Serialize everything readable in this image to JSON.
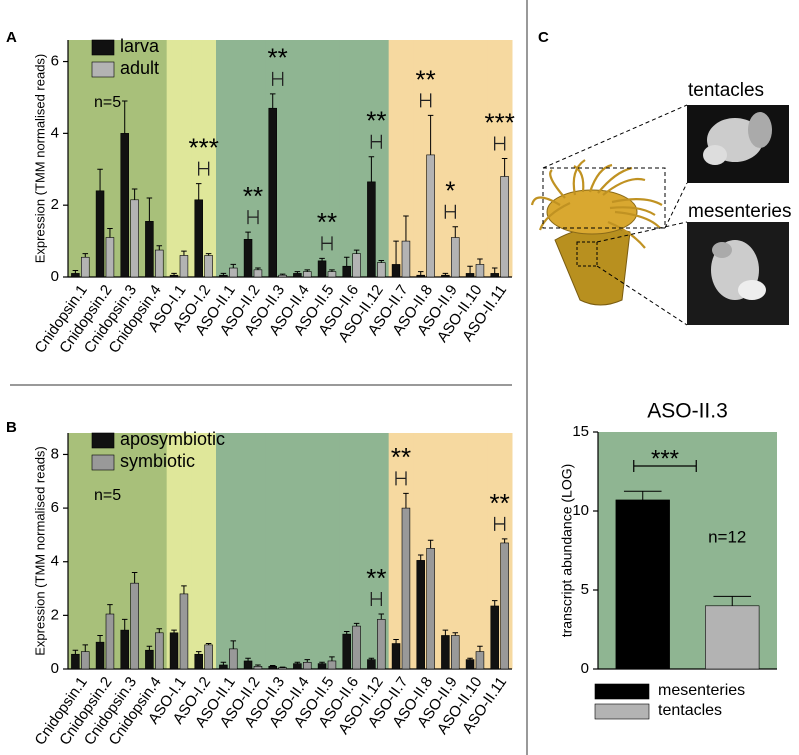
{
  "chart_data": [
    {
      "type": "bar",
      "panel_label": "A",
      "ylabel": "Expression (TMM normalised reads)",
      "categories": [
        "Cnidopsin.1",
        "Cnidopsin.2",
        "Cnidopsin.3",
        "Cnidopsin.4",
        "ASO-I.1",
        "ASO-I.2",
        "ASO-II.1",
        "ASO-II.2",
        "ASO-II.3",
        "ASO-II.4",
        "ASO-II.5",
        "ASO-II.6",
        "ASO-II.12",
        "ASO-II.7",
        "ASO-II.8",
        "ASO-II.9",
        "ASO-II.10",
        "ASO-II.11"
      ],
      "series": [
        {
          "name": "larva",
          "color": "#111111",
          "values": [
            0.1,
            2.4,
            4.0,
            1.55,
            0.05,
            2.15,
            0.05,
            1.05,
            4.7,
            0.1,
            0.45,
            0.3,
            2.65,
            0.35,
            0.05,
            0.05,
            0.1,
            0.1
          ],
          "errors": [
            0.08,
            0.6,
            0.9,
            0.65,
            0.05,
            0.45,
            0.05,
            0.2,
            0.4,
            0.05,
            0.07,
            0.25,
            0.7,
            0.65,
            0.1,
            0.05,
            0.2,
            0.15
          ]
        },
        {
          "name": "adult",
          "color": "#b3b3b3",
          "values": [
            0.55,
            1.1,
            2.15,
            0.75,
            0.6,
            0.6,
            0.25,
            0.2,
            0.05,
            0.15,
            0.15,
            0.65,
            0.4,
            1.0,
            3.4,
            1.1,
            0.35,
            2.8
          ],
          "errors": [
            0.1,
            0.25,
            0.3,
            0.12,
            0.12,
            0.05,
            0.1,
            0.05,
            0.03,
            0.05,
            0.05,
            0.1,
            0.06,
            0.7,
            1.1,
            0.3,
            0.15,
            0.5
          ]
        }
      ],
      "significance": [
        null,
        null,
        null,
        null,
        null,
        "***",
        null,
        "**",
        "**",
        null,
        "**",
        null,
        "**",
        null,
        "**",
        "*",
        null,
        "***"
      ],
      "background_colors": [
        "#a8c07a",
        "#a8c07a",
        "#a8c07a",
        "#a8c07a",
        "#dfe79a",
        "#dfe79a",
        "#8fb592",
        "#8fb592",
        "#8fb592",
        "#8fb592",
        "#8fb592",
        "#8fb592",
        "#8fb592",
        "#f6d9a0",
        "#f6d9a0",
        "#f6d9a0",
        "#f6d9a0",
        "#f6d9a0"
      ],
      "annotation": "n=5",
      "ylim": [
        0,
        6.6
      ],
      "yticks": [
        0,
        2,
        4,
        6
      ],
      "legend": "upper left"
    },
    {
      "type": "bar",
      "panel_label": "B",
      "ylabel": "Expression (TMM normalised reads)",
      "categories": [
        "Cnidopsin.1",
        "Cnidopsin.2",
        "Cnidopsin.3",
        "Cnidopsin.4",
        "ASO-I.1",
        "ASO-I.2",
        "ASO-II.1",
        "ASO-II.2",
        "ASO-II.3",
        "ASO-II.4",
        "ASO-II.5",
        "ASO-II.6",
        "ASO-II.12",
        "ASO-II.7",
        "ASO-II.8",
        "ASO-II.9",
        "ASO-II.10",
        "ASO-II.11"
      ],
      "series": [
        {
          "name": "aposymbiotic",
          "color": "#111111",
          "values": [
            0.55,
            1.0,
            1.45,
            0.7,
            1.35,
            0.55,
            0.15,
            0.3,
            0.1,
            0.2,
            0.2,
            1.3,
            0.35,
            0.95,
            4.05,
            1.25,
            0.35,
            2.35
          ],
          "errors": [
            0.15,
            0.25,
            0.4,
            0.15,
            0.1,
            0.1,
            0.1,
            0.1,
            0.03,
            0.05,
            0.05,
            0.1,
            0.05,
            0.15,
            0.2,
            0.2,
            0.05,
            0.2
          ]
        },
        {
          "name": "symbiotic",
          "color": "#999999",
          "values": [
            0.65,
            2.05,
            3.2,
            1.35,
            2.8,
            0.9,
            0.75,
            0.1,
            0.05,
            0.25,
            0.3,
            1.6,
            1.85,
            6.0,
            4.5,
            1.25,
            0.65,
            4.7
          ],
          "errors": [
            0.25,
            0.35,
            0.4,
            0.15,
            0.3,
            0.05,
            0.3,
            0.05,
            0.02,
            0.1,
            0.15,
            0.1,
            0.2,
            0.55,
            0.3,
            0.1,
            0.2,
            0.15
          ]
        }
      ],
      "significance": [
        null,
        null,
        null,
        null,
        null,
        null,
        null,
        null,
        null,
        null,
        null,
        null,
        "**",
        "**",
        null,
        null,
        null,
        "**"
      ],
      "background_colors": [
        "#a8c07a",
        "#a8c07a",
        "#a8c07a",
        "#a8c07a",
        "#dfe79a",
        "#dfe79a",
        "#8fb592",
        "#8fb592",
        "#8fb592",
        "#8fb592",
        "#8fb592",
        "#8fb592",
        "#8fb592",
        "#f6d9a0",
        "#f6d9a0",
        "#f6d9a0",
        "#f6d9a0",
        "#f6d9a0"
      ],
      "annotation": "n=5",
      "ylim": [
        0,
        8.8
      ],
      "yticks": [
        0,
        2,
        4,
        6,
        8
      ],
      "legend": "upper left"
    },
    {
      "type": "bar",
      "panel_label": "C",
      "title": "ASO-II.3",
      "ylabel": "transcript abundance (LOG)",
      "series": [
        {
          "name": "mesenteries",
          "color": "#000000",
          "values": [
            10.7
          ],
          "errors": [
            0.55
          ]
        },
        {
          "name": "tentacles",
          "color": "#b3b3b3",
          "values": [
            4.0
          ],
          "errors": [
            0.6
          ]
        }
      ],
      "significance": "***",
      "annotation": "n=12",
      "background": "#8fb592",
      "ylim": [
        0,
        15
      ],
      "yticks": [
        0,
        5,
        10,
        15
      ],
      "legend": "below"
    }
  ],
  "illustration": {
    "labels": [
      "tentacles",
      "mesenteries"
    ]
  }
}
